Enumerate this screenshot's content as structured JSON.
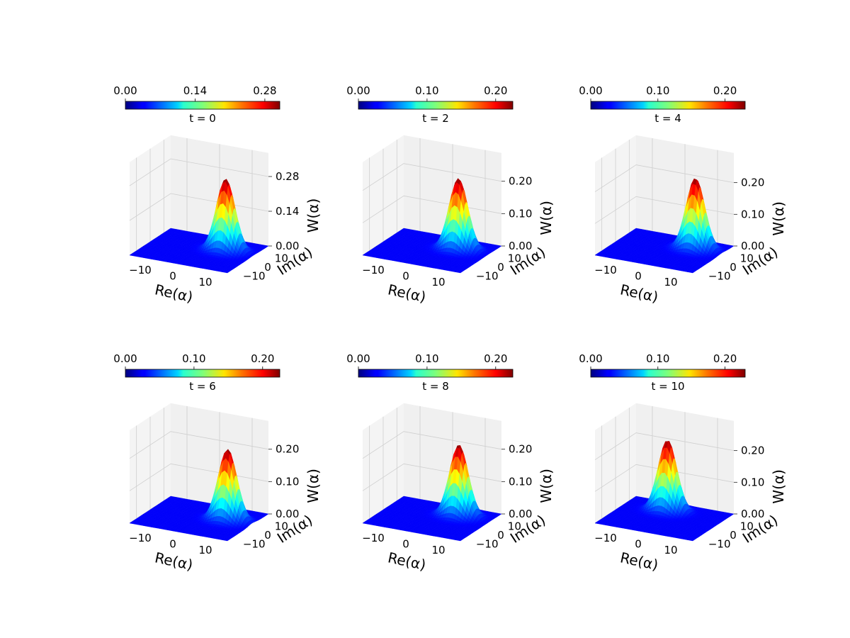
{
  "chart_data": [
    {
      "type": "surface3d",
      "title": "t = 0",
      "xlabel": "Re(α)",
      "ylabel": "Im(α)",
      "zlabel": "W(α)",
      "colormap": "jet",
      "xticks": [
        "−10",
        "0",
        "10"
      ],
      "yticks": [
        "−10",
        "0",
        "10"
      ],
      "zticks": [
        "0.00",
        "0.14",
        "0.28"
      ],
      "colorbar": {
        "ticks": [
          "0.00",
          "0.14",
          "0.28"
        ],
        "min": 0.0,
        "max": 0.31
      },
      "peak": {
        "re": 6.5,
        "im": 4.0,
        "w": 0.29
      },
      "zmax": 0.3
    },
    {
      "type": "surface3d",
      "title": "t = 2",
      "xlabel": "Re(α)",
      "ylabel": "Im(α)",
      "zlabel": "W(α)",
      "colormap": "jet",
      "xticks": [
        "−10",
        "0",
        "10"
      ],
      "yticks": [
        "−10",
        "0",
        "10"
      ],
      "zticks": [
        "0.00",
        "0.10",
        "0.20"
      ],
      "colorbar": {
        "ticks": [
          "0.00",
          "0.10",
          "0.20"
        ],
        "min": 0.0,
        "max": 0.225
      },
      "peak": {
        "re": 6.0,
        "im": 5.0,
        "w": 0.22
      },
      "zmax": 0.23
    },
    {
      "type": "surface3d",
      "title": "t = 4",
      "xlabel": "Re(α)",
      "ylabel": "Im(α)",
      "zlabel": "W(α)",
      "colormap": "jet",
      "xticks": [
        "−10",
        "0",
        "10"
      ],
      "yticks": [
        "−10",
        "0",
        "10"
      ],
      "zticks": [
        "0.00",
        "0.10",
        "0.20"
      ],
      "colorbar": {
        "ticks": [
          "0.00",
          "0.10",
          "0.20"
        ],
        "min": 0.0,
        "max": 0.23
      },
      "peak": {
        "re": 7.0,
        "im": 6.0,
        "w": 0.225
      },
      "zmax": 0.235
    },
    {
      "type": "surface3d",
      "title": "t = 6",
      "xlabel": "Re(α)",
      "ylabel": "Im(α)",
      "zlabel": "W(α)",
      "colormap": "jet",
      "xticks": [
        "−10",
        "0",
        "10"
      ],
      "yticks": [
        "−10",
        "0",
        "10"
      ],
      "zticks": [
        "0.00",
        "0.10",
        "0.20"
      ],
      "colorbar": {
        "ticks": [
          "0.00",
          "0.10",
          "0.20"
        ],
        "min": 0.0,
        "max": 0.225
      },
      "peak": {
        "re": 7.5,
        "im": 3.0,
        "w": 0.22
      },
      "zmax": 0.23
    },
    {
      "type": "surface3d",
      "title": "t = 8",
      "xlabel": "Re(α)",
      "ylabel": "Im(α)",
      "zlabel": "W(α)",
      "colormap": "jet",
      "xticks": [
        "−10",
        "0",
        "10"
      ],
      "yticks": [
        "−10",
        "0",
        "10"
      ],
      "zticks": [
        "0.00",
        "0.10",
        "0.20"
      ],
      "colorbar": {
        "ticks": [
          "0.00",
          "0.10",
          "0.20"
        ],
        "min": 0.0,
        "max": 0.225
      },
      "peak": {
        "re": 5.5,
        "im": 6.5,
        "w": 0.22
      },
      "zmax": 0.23
    },
    {
      "type": "surface3d",
      "title": "t = 10",
      "xlabel": "Re(α)",
      "ylabel": "Im(α)",
      "zlabel": "W(α)",
      "colormap": "jet",
      "xticks": [
        "−10",
        "0",
        "10"
      ],
      "yticks": [
        "−10",
        "0",
        "10"
      ],
      "zticks": [
        "0.00",
        "0.10",
        "0.20"
      ],
      "colorbar": {
        "ticks": [
          "0.00",
          "0.10",
          "0.20"
        ],
        "min": 0.0,
        "max": 0.23
      },
      "peak": {
        "re": -2.0,
        "im": 7.0,
        "w": 0.225
      },
      "zmax": 0.235
    }
  ],
  "colors": {
    "pane_left": "#f4f4f4",
    "pane_back": "#f0f0f0",
    "pane_floor": "#f7f7f7",
    "grid": "#cfcfcf",
    "axis": "#222222"
  }
}
